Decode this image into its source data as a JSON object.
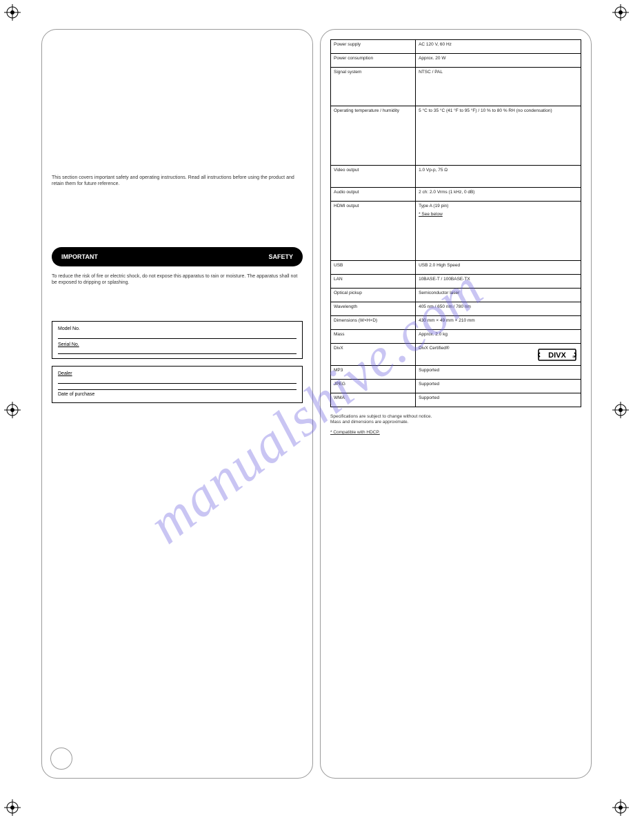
{
  "watermark": "manualshive.com",
  "left": {
    "intro": "This section covers important safety and operating instructions. Read all instructions before using the product and retain them for future reference.",
    "pill_left": "IMPORTANT",
    "pill_right": "SAFETY",
    "para": "To reduce the risk of fire or electric shock, do not expose this apparatus to rain or moisture. The apparatus shall not be exposed to dripping or splashing.",
    "box1_a": "Model No.",
    "box1_b": "Serial No.",
    "box2_a": "Dealer",
    "box2_b": "Date of purchase",
    "page_num": ""
  },
  "right": {
    "rows": [
      {
        "l": "Power supply",
        "r": "AC 120 V, 60 Hz",
        "h": "sm"
      },
      {
        "l": "Power consumption",
        "r": "Approx. 20 W",
        "h": "sm"
      },
      {
        "l": "Signal system",
        "r": "NTSC / PAL",
        "h": "tall"
      },
      {
        "l": "Operating temperature / humidity",
        "r": "5 °C to 35 °C (41 °F to 95 °F) / 10 % to 80 % RH (no condensation)",
        "h": "xtall"
      },
      {
        "l": "Video output",
        "r": "1.0 Vp-p, 75 Ω",
        "h": "med"
      },
      {
        "l": "Audio output",
        "r": "2 ch: 2.0 Vrms (1 kHz, 0 dB)",
        "h": "sm"
      },
      {
        "l": "HDMI output",
        "r": "Type A (19 pin)",
        "h": "xtall",
        "note": "* See below"
      },
      {
        "l": "USB",
        "r": "USB 2.0 High Speed",
        "h": "sm"
      },
      {
        "l": "LAN",
        "r": "10BASE-T / 100BASE-TX",
        "h": "sm"
      },
      {
        "l": "Optical pickup",
        "r": "Semiconductor laser",
        "h": "sm"
      },
      {
        "l": "Wavelength",
        "r": "405 nm / 650 nm / 780 nm",
        "h": "sm"
      },
      {
        "l": "Dimensions (W×H×D)",
        "r": "430 mm × 49 mm × 210 mm",
        "h": "sm"
      },
      {
        "l": "Mass",
        "r": "Approx. 2.0 kg",
        "h": "sm"
      },
      {
        "l": "DivX",
        "r": "DivX Certified®",
        "h": "med",
        "divx": true
      },
      {
        "l": "MP3",
        "r": "Supported",
        "h": "sm"
      },
      {
        "l": "JPEG",
        "r": "Supported",
        "h": "sm"
      },
      {
        "l": "WMA",
        "r": "Supported",
        "h": "sm"
      }
    ],
    "footer1": "Specifications are subject to change without notice.",
    "footer2": "Mass and dimensions are approximate.",
    "star": "* Compatible with HDCP."
  }
}
